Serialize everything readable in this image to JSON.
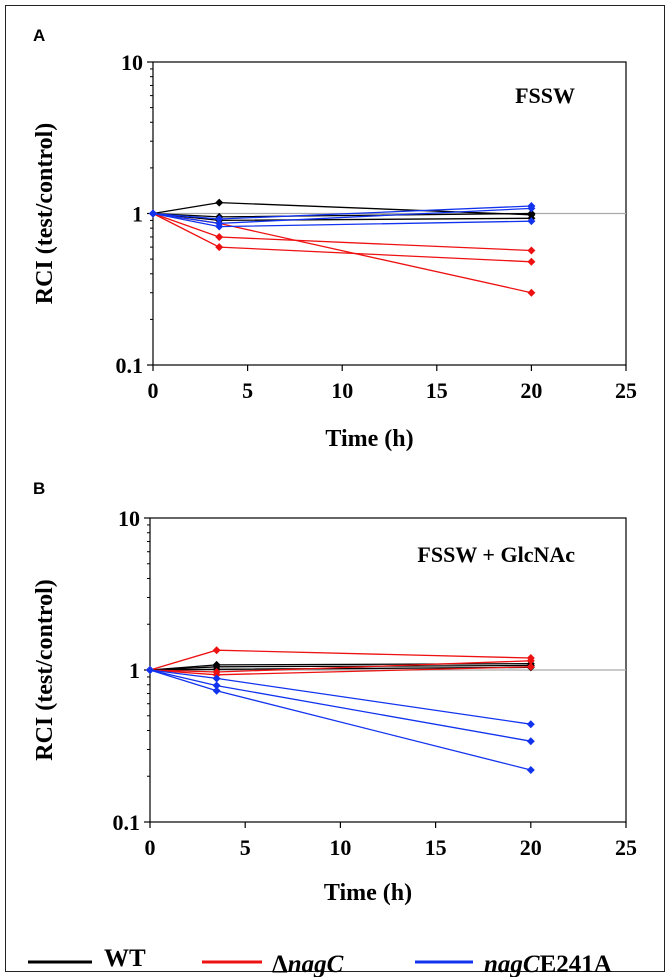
{
  "colors": {
    "WT": "#000000",
    "nagC_deletion": "#ee1111",
    "nagC_E241A": "#1133ee",
    "refline": "#aaaaaa"
  },
  "legend": {
    "items": [
      {
        "series": "WT",
        "label": "WT",
        "italic_part": ""
      },
      {
        "series": "nagC_deletion",
        "label": "Δ",
        "italic_part": "nagC"
      },
      {
        "series": "nagC_E241A",
        "label": "E241A",
        "italic_part": "nagC"
      }
    ]
  },
  "chart_data": [
    {
      "type": "line",
      "panel": "A",
      "annotation": "FSSW",
      "xlabel": "Time (h)",
      "ylabel": "RCI (test/control)",
      "xlim": [
        0,
        25
      ],
      "ylim": [
        0.1,
        10
      ],
      "yscale": "log",
      "x_ticks": [
        "0",
        "5",
        "10",
        "15",
        "20",
        "25"
      ],
      "y_ticks": [
        "0.1",
        "1",
        "10"
      ],
      "reference_line_y": 1,
      "series": [
        {
          "group": "WT",
          "x": [
            0,
            3.5,
            20
          ],
          "y": [
            1.0,
            1.18,
            0.98
          ]
        },
        {
          "group": "WT",
          "x": [
            0,
            3.5,
            20
          ],
          "y": [
            1.0,
            0.95,
            1.0
          ]
        },
        {
          "group": "WT",
          "x": [
            0,
            3.5,
            20
          ],
          "y": [
            1.0,
            0.9,
            0.93
          ]
        },
        {
          "group": "nagC_deletion",
          "x": [
            0,
            3.5,
            20
          ],
          "y": [
            1.0,
            0.7,
            0.57
          ]
        },
        {
          "group": "nagC_deletion",
          "x": [
            0,
            3.5,
            20
          ],
          "y": [
            1.0,
            0.6,
            0.48
          ]
        },
        {
          "group": "nagC_deletion",
          "x": [
            0,
            3.5,
            20
          ],
          "y": [
            1.0,
            0.86,
            0.3
          ]
        },
        {
          "group": "nagC_E241A",
          "x": [
            0,
            3.5,
            20
          ],
          "y": [
            1.0,
            0.92,
            1.12
          ]
        },
        {
          "group": "nagC_E241A",
          "x": [
            0,
            3.5,
            20
          ],
          "y": [
            1.0,
            0.86,
            1.08
          ]
        },
        {
          "group": "nagC_E241A",
          "x": [
            0,
            3.5,
            20
          ],
          "y": [
            1.0,
            0.82,
            0.89
          ]
        }
      ]
    },
    {
      "type": "line",
      "panel": "B",
      "annotation": "FSSW + GlcNAc",
      "xlabel": "Time (h)",
      "ylabel": "RCI (test/control)",
      "xlim": [
        0,
        25
      ],
      "ylim": [
        0.1,
        10
      ],
      "yscale": "log",
      "x_ticks": [
        "0",
        "5",
        "10",
        "15",
        "20",
        "25"
      ],
      "y_ticks": [
        "0.1",
        "1",
        "10"
      ],
      "reference_line_y": 1,
      "series": [
        {
          "group": "WT",
          "x": [
            0,
            3.5,
            20
          ],
          "y": [
            1.0,
            1.08,
            1.1
          ]
        },
        {
          "group": "WT",
          "x": [
            0,
            3.5,
            20
          ],
          "y": [
            1.0,
            1.05,
            1.07
          ]
        },
        {
          "group": "WT",
          "x": [
            0,
            3.5,
            20
          ],
          "y": [
            1.0,
            1.01,
            1.04
          ]
        },
        {
          "group": "nagC_deletion",
          "x": [
            0,
            3.5,
            20
          ],
          "y": [
            1.0,
            1.35,
            1.2
          ]
        },
        {
          "group": "nagC_deletion",
          "x": [
            0,
            3.5,
            20
          ],
          "y": [
            1.0,
            0.97,
            1.15
          ]
        },
        {
          "group": "nagC_deletion",
          "x": [
            0,
            3.5,
            20
          ],
          "y": [
            1.0,
            0.93,
            1.05
          ]
        },
        {
          "group": "nagC_E241A",
          "x": [
            0,
            3.5,
            20
          ],
          "y": [
            1.0,
            0.88,
            0.44
          ]
        },
        {
          "group": "nagC_E241A",
          "x": [
            0,
            3.5,
            20
          ],
          "y": [
            1.0,
            0.79,
            0.34
          ]
        },
        {
          "group": "nagC_E241A",
          "x": [
            0,
            3.5,
            20
          ],
          "y": [
            1.0,
            0.73,
            0.22
          ]
        }
      ]
    }
  ]
}
